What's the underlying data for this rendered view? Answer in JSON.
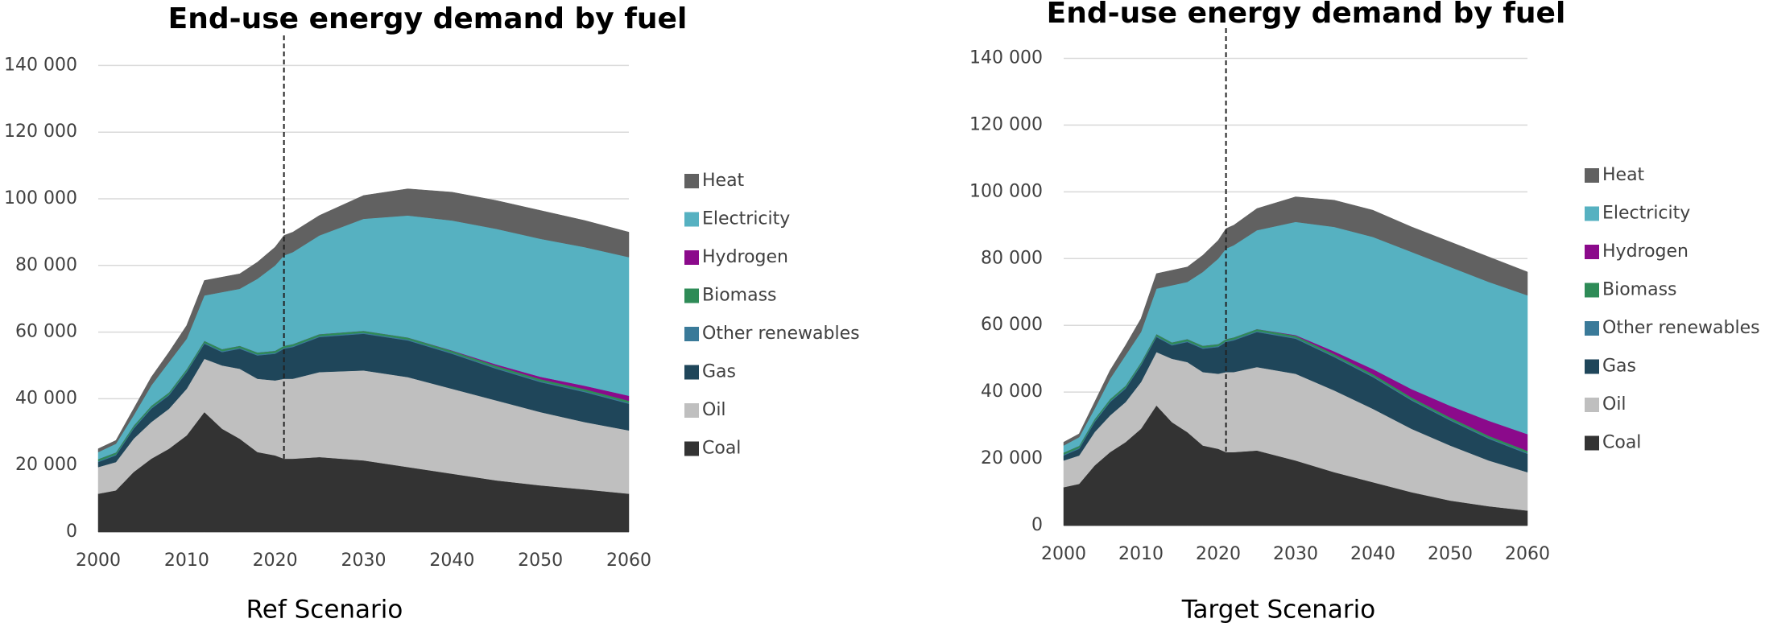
{
  "chart_data": [
    {
      "type": "area",
      "title": "End-use energy demand by fuel",
      "xlabel": "Ref Scenario",
      "x": [
        2000,
        2002,
        2004,
        2006,
        2008,
        2010,
        2012,
        2014,
        2016,
        2018,
        2020,
        2021,
        2022,
        2025,
        2030,
        2035,
        2040,
        2045,
        2050,
        2055,
        2060
      ],
      "xlim": [
        2000,
        2060
      ],
      "xticks": [
        2000,
        2010,
        2020,
        2030,
        2040,
        2050,
        2060
      ],
      "ylim": [
        0,
        150000
      ],
      "yticks": [
        0,
        {
          "value": 20000,
          "label": "20 000"
        },
        {
          "value": 40000,
          "label": "40 000"
        },
        {
          "value": 60000,
          "label": "60 000"
        },
        {
          "value": 80000,
          "label": "80 000"
        },
        {
          "value": 100000,
          "label": "100 000"
        },
        {
          "value": 120000,
          "label": "120 000"
        },
        {
          "value": 140000,
          "label": "140 000"
        }
      ],
      "grid": true,
      "stacked": true,
      "vline_x": 2021,
      "series": [
        {
          "name": "Coal",
          "color": "#333333",
          "values": [
            11500,
            12500,
            18000,
            22000,
            25000,
            29000,
            36000,
            31000,
            28000,
            24000,
            23000,
            22000,
            22000,
            22500,
            21500,
            19500,
            17500,
            15500,
            14000,
            12800,
            11500
          ]
        },
        {
          "name": "Oil",
          "color": "#bfbfbf",
          "values": [
            8000,
            8500,
            10000,
            11000,
            12000,
            14000,
            16000,
            19000,
            21000,
            22000,
            22500,
            24000,
            24000,
            25500,
            27000,
            27000,
            25500,
            24000,
            22000,
            20200,
            19000
          ]
        },
        {
          "name": "Gas",
          "color": "#1f465a",
          "values": [
            1500,
            2000,
            3000,
            4000,
            4000,
            5000,
            4500,
            4000,
            6000,
            7000,
            8000,
            9000,
            9500,
            10500,
            11000,
            11000,
            10500,
            9500,
            9000,
            9000,
            8000
          ]
        },
        {
          "name": "Other renewables",
          "color": "#3a7a99",
          "values": [
            300,
            300,
            300,
            300,
            300,
            300,
            300,
            300,
            300,
            300,
            300,
            300,
            300,
            300,
            300,
            300,
            300,
            300,
            300,
            300,
            300
          ]
        },
        {
          "name": "Biomass",
          "color": "#2e8b57",
          "values": [
            600,
            600,
            600,
            600,
            600,
            600,
            600,
            600,
            600,
            600,
            600,
            600,
            600,
            600,
            600,
            600,
            600,
            600,
            600,
            600,
            600
          ]
        },
        {
          "name": "Hydrogen",
          "color": "#8b0a8b",
          "values": [
            0,
            0,
            0,
            0,
            0,
            0,
            0,
            0,
            0,
            0,
            0,
            0,
            0,
            0,
            0,
            0,
            100,
            400,
            700,
            1000,
            1500
          ]
        },
        {
          "name": "Electricity",
          "color": "#56b1c1",
          "values": [
            2100,
            2600,
            3100,
            6100,
            9100,
            9100,
            13600,
            17100,
            17100,
            22100,
            25600,
            27100,
            27600,
            29600,
            33600,
            36600,
            39000,
            40700,
            41400,
            41600,
            41600
          ]
        },
        {
          "name": "Heat",
          "color": "#616161",
          "values": [
            1000,
            1000,
            2000,
            2500,
            3000,
            4000,
            4500,
            4500,
            4500,
            5000,
            5500,
            6000,
            6000,
            6000,
            7000,
            8000,
            8500,
            8500,
            8500,
            8000,
            7500
          ]
        }
      ]
    },
    {
      "type": "area",
      "title": "End-use energy demand by fuel",
      "xlabel": "Target Scenario",
      "x": [
        2000,
        2002,
        2004,
        2006,
        2008,
        2010,
        2012,
        2014,
        2016,
        2018,
        2020,
        2021,
        2022,
        2025,
        2030,
        2035,
        2040,
        2045,
        2050,
        2055,
        2060
      ],
      "xlim": [
        2000,
        2060
      ],
      "xticks": [
        2000,
        2010,
        2020,
        2030,
        2040,
        2050,
        2060
      ],
      "ylim": [
        0,
        150000
      ],
      "yticks": [
        0,
        {
          "value": 20000,
          "label": "20 000"
        },
        {
          "value": 40000,
          "label": "40 000"
        },
        {
          "value": 60000,
          "label": "60 000"
        },
        {
          "value": 80000,
          "label": "80 000"
        },
        {
          "value": 100000,
          "label": "100 000"
        },
        {
          "value": 120000,
          "label": "120 000"
        },
        {
          "value": 140000,
          "label": "140 000"
        }
      ],
      "grid": true,
      "stacked": true,
      "vline_x": 2021,
      "series": [
        {
          "name": "Coal",
          "color": "#333333",
          "values": [
            11500,
            12500,
            18000,
            22000,
            25000,
            29000,
            36000,
            31000,
            28000,
            24000,
            23000,
            22000,
            22000,
            22500,
            19500,
            16000,
            13000,
            10000,
            7500,
            5800,
            4500
          ]
        },
        {
          "name": "Oil",
          "color": "#bfbfbf",
          "values": [
            8000,
            8500,
            10000,
            11000,
            12000,
            14000,
            16000,
            19000,
            21000,
            22000,
            22500,
            24000,
            24000,
            25000,
            26000,
            24500,
            22000,
            19000,
            16500,
            13700,
            11500
          ]
        },
        {
          "name": "Gas",
          "color": "#1f465a",
          "values": [
            1500,
            2000,
            3000,
            4000,
            4000,
            5000,
            4500,
            4000,
            6000,
            7000,
            8000,
            9000,
            9500,
            10500,
            10500,
            10000,
            9500,
            8500,
            7500,
            6500,
            5500
          ]
        },
        {
          "name": "Other renewables",
          "color": "#3a7a99",
          "values": [
            300,
            300,
            300,
            300,
            300,
            300,
            300,
            300,
            300,
            300,
            300,
            300,
            300,
            300,
            300,
            300,
            300,
            300,
            300,
            300,
            300
          ]
        },
        {
          "name": "Biomass",
          "color": "#2e8b57",
          "values": [
            600,
            600,
            600,
            600,
            600,
            600,
            600,
            600,
            600,
            600,
            600,
            600,
            600,
            600,
            600,
            600,
            600,
            600,
            600,
            600,
            600
          ]
        },
        {
          "name": "Hydrogen",
          "color": "#8b0a8b",
          "values": [
            0,
            0,
            0,
            0,
            0,
            0,
            0,
            0,
            0,
            0,
            0,
            0,
            0,
            0,
            200,
            800,
            1500,
            2500,
            3500,
            4500,
            5000
          ]
        },
        {
          "name": "Electricity",
          "color": "#56b1c1",
          "values": [
            2100,
            2600,
            3100,
            6100,
            9100,
            9100,
            13600,
            17100,
            17100,
            22100,
            25600,
            27100,
            27600,
            29600,
            33900,
            37300,
            39600,
            41100,
            41600,
            41600,
            41600
          ]
        },
        {
          "name": "Heat",
          "color": "#616161",
          "values": [
            1000,
            1000,
            2000,
            2500,
            3000,
            4000,
            4500,
            4500,
            4500,
            5000,
            5500,
            6000,
            6000,
            6500,
            7500,
            8000,
            8000,
            7500,
            7500,
            7500,
            7000
          ]
        }
      ]
    }
  ]
}
